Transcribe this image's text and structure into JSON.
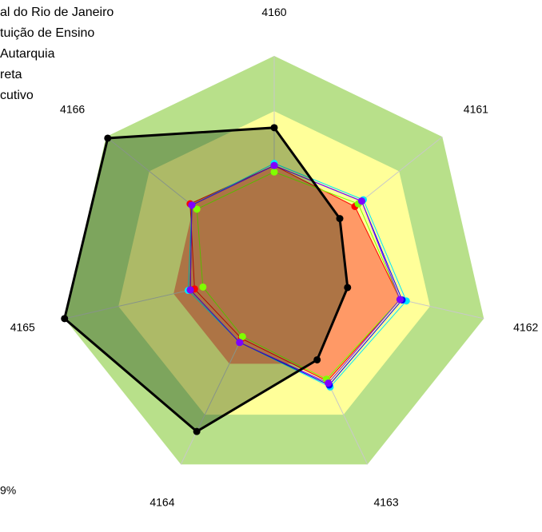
{
  "chart_data": {
    "type": "radar",
    "categories": [
      "4160",
      "4161",
      "4162",
      "4163",
      "4164",
      "4165",
      "4166"
    ],
    "rlim": [
      0,
      1
    ],
    "annotations": [
      "9%"
    ],
    "series": [
      {
        "name": "al do Rio de Janeiro",
        "color": "#ff0000",
        "values": [
          0.49,
          0.48,
          0.6,
          0.57,
          0.35,
          0.38,
          0.5
        ]
      },
      {
        "name": "tuição de Ensino",
        "color": "#00e5ff",
        "values": [
          0.5,
          0.53,
          0.63,
          0.6,
          0.37,
          0.41,
          0.49
        ]
      },
      {
        "name": "Autarquia",
        "color": "#0000ff",
        "values": [
          0.49,
          0.52,
          0.61,
          0.59,
          0.37,
          0.4,
          0.49
        ]
      },
      {
        "name": "reta",
        "color": "#80ff00",
        "values": [
          0.46,
          0.5,
          0.6,
          0.56,
          0.34,
          0.34,
          0.46
        ]
      },
      {
        "name": "cutivo",
        "color": "#8000ff",
        "values": [
          0.49,
          0.52,
          0.6,
          0.58,
          0.37,
          0.4,
          0.49
        ]
      },
      {
        "color": "#000000",
        "values": [
          0.666,
          0.39,
          0.35,
          0.46,
          0.83,
          1.0,
          0.99
        ]
      }
    ]
  }
}
